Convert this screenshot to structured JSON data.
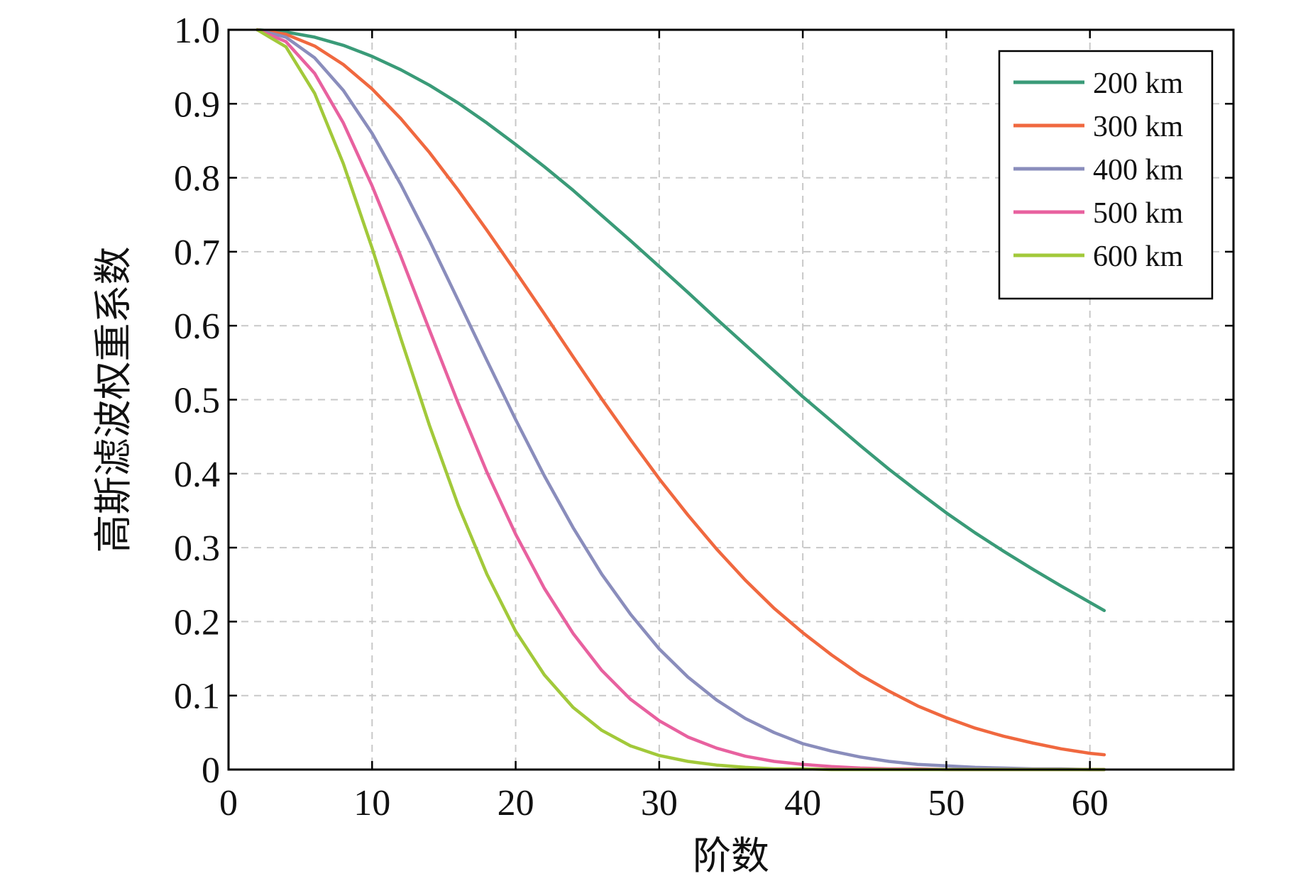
{
  "chart_data": {
    "type": "line",
    "title": "",
    "xlabel": "阶数",
    "ylabel": "高斯滤波权重系数",
    "xlim": [
      0,
      70
    ],
    "ylim": [
      0,
      1.0
    ],
    "xticks": [
      0,
      10,
      20,
      30,
      40,
      50,
      60
    ],
    "xtick_labels": [
      "0",
      "10",
      "20",
      "30",
      "40",
      "50",
      "60"
    ],
    "yticks": [
      0,
      0.1,
      0.2,
      0.3,
      0.4,
      0.5,
      0.6,
      0.7,
      0.8,
      0.9,
      1.0
    ],
    "ytick_labels": [
      "0",
      "0.1",
      "0.2",
      "0.3",
      "0.4",
      "0.5",
      "0.6",
      "0.7",
      "0.8",
      "0.9",
      "1.0"
    ],
    "grid": true,
    "legend_position": "top-right",
    "x": [
      2,
      4,
      6,
      8,
      10,
      12,
      14,
      16,
      18,
      20,
      22,
      24,
      26,
      28,
      30,
      32,
      34,
      36,
      38,
      40,
      42,
      44,
      46,
      48,
      50,
      52,
      54,
      56,
      58,
      60,
      61
    ],
    "series": [
      {
        "name": "200 km",
        "color": "#3a9b78",
        "values": [
          1.0,
          0.997,
          0.99,
          0.979,
          0.964,
          0.946,
          0.925,
          0.901,
          0.874,
          0.845,
          0.815,
          0.783,
          0.749,
          0.715,
          0.68,
          0.645,
          0.609,
          0.574,
          0.539,
          0.504,
          0.471,
          0.438,
          0.406,
          0.376,
          0.347,
          0.32,
          0.295,
          0.271,
          0.248,
          0.226,
          0.215
        ]
      },
      {
        "name": "300 km",
        "color": "#f0683f",
        "values": [
          1.0,
          0.994,
          0.978,
          0.953,
          0.92,
          0.88,
          0.834,
          0.783,
          0.729,
          0.673,
          0.616,
          0.558,
          0.501,
          0.446,
          0.393,
          0.344,
          0.298,
          0.256,
          0.218,
          0.185,
          0.155,
          0.128,
          0.106,
          0.086,
          0.07,
          0.056,
          0.045,
          0.036,
          0.028,
          0.022,
          0.02
        ]
      },
      {
        "name": "400 km",
        "color": "#8a8dbc",
        "values": [
          1.0,
          0.99,
          0.962,
          0.918,
          0.86,
          0.791,
          0.715,
          0.634,
          0.553,
          0.473,
          0.397,
          0.327,
          0.264,
          0.21,
          0.163,
          0.125,
          0.094,
          0.069,
          0.05,
          0.035,
          0.025,
          0.017,
          0.011,
          0.007,
          0.005,
          0.003,
          0.002,
          0.001,
          0.001,
          0.0,
          0.0
        ]
      },
      {
        "name": "500 km",
        "color": "#e8619f",
        "values": [
          1.0,
          0.984,
          0.941,
          0.874,
          0.789,
          0.694,
          0.594,
          0.495,
          0.402,
          0.318,
          0.245,
          0.184,
          0.134,
          0.095,
          0.066,
          0.044,
          0.029,
          0.018,
          0.011,
          0.007,
          0.004,
          0.002,
          0.001,
          0.001,
          0.0,
          0.0,
          0.0,
          0.0,
          0.0,
          0.0,
          0.0
        ]
      },
      {
        "name": "600 km",
        "color": "#a2c93a",
        "values": [
          1.0,
          0.977,
          0.914,
          0.819,
          0.705,
          0.583,
          0.465,
          0.357,
          0.264,
          0.187,
          0.128,
          0.084,
          0.053,
          0.032,
          0.019,
          0.011,
          0.006,
          0.003,
          0.001,
          0.001,
          0.0,
          0.0,
          0.0,
          0.0,
          0.0,
          0.0,
          0.0,
          0.0,
          0.0,
          0.0,
          0.0
        ]
      }
    ]
  }
}
